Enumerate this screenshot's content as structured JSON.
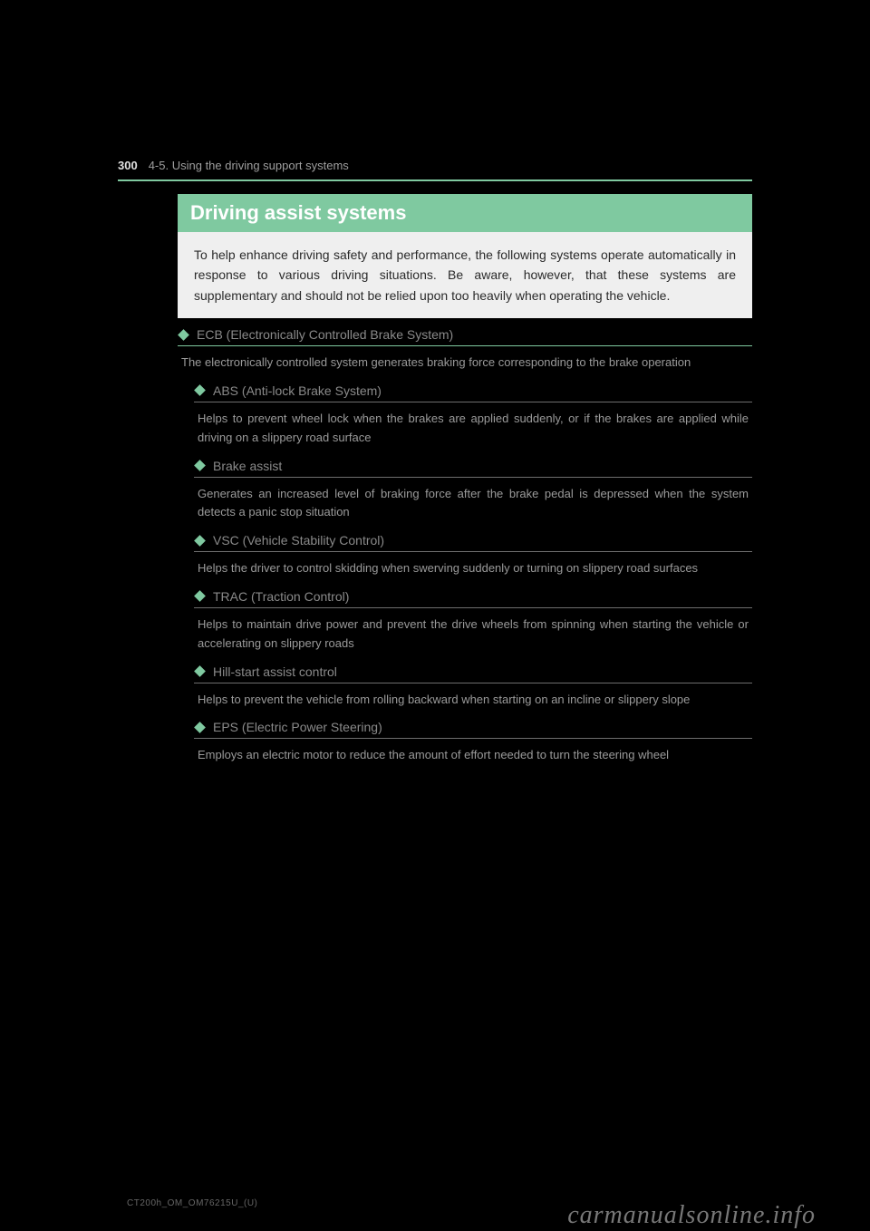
{
  "header": {
    "page_num": "300",
    "chapter": "4-5. Using the driving support systems"
  },
  "title": "Driving assist systems",
  "intro": "To help enhance driving safety and performance, the following systems operate automatically in response to various driving situations. Be aware, however, that these systems are supplementary and should not be relied upon too heavily when operating the vehicle.",
  "sections": [
    {
      "title": "ECB (Electronically Controlled Brake System)",
      "body": "The electronically controlled system generates braking force corresponding to the brake operation",
      "first": true,
      "indent": false
    },
    {
      "title": "ABS (Anti-lock Brake System)",
      "body": "Helps to prevent wheel lock when the brakes are applied suddenly, or if the brakes are applied while driving on a slippery road surface",
      "first": false,
      "indent": true
    },
    {
      "title": "Brake assist",
      "body": "Generates an increased level of braking force after the brake pedal is depressed when the system detects a panic stop situation",
      "first": false,
      "indent": true
    },
    {
      "title": "VSC (Vehicle Stability Control)",
      "body": "Helps the driver to control skidding when swerving suddenly or turning on slippery road surfaces",
      "first": false,
      "indent": true
    },
    {
      "title": "TRAC (Traction Control)",
      "body": "Helps to maintain drive power and prevent the drive wheels from spinning when starting the vehicle or accelerating on slippery roads",
      "first": false,
      "indent": true
    },
    {
      "title": "Hill-start assist control",
      "body": "Helps to prevent the vehicle from rolling backward when starting on an incline or slippery slope",
      "first": false,
      "indent": true
    },
    {
      "title": "EPS (Electric Power Steering)",
      "body": "Employs an electric motor to reduce the amount of effort needed to turn the steering wheel",
      "first": false,
      "indent": true
    }
  ],
  "footer": "CT200h_OM_OM76215U_(U)",
  "watermark": "carmanualsonline.info",
  "colors": {
    "accent": "#7fc9a0",
    "page_bg": "#000000",
    "intro_bg": "#efefef",
    "intro_text": "#2a2a2a",
    "body_text": "#9a9a9a",
    "header_text": "#8a8a8a"
  }
}
